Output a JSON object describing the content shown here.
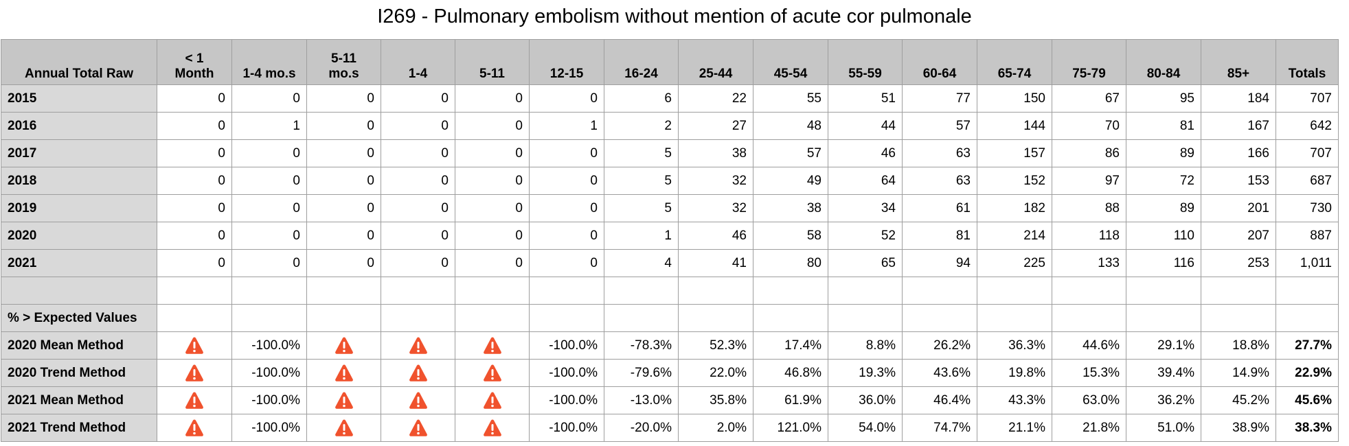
{
  "title": "I269 - Pulmonary embolism without mention of acute cor pulmonale",
  "colors": {
    "header_bg": "#c6c6c6",
    "label_bg": "#d9d9d9",
    "warning": "#f0522d"
  },
  "chart_data": {
    "type": "table",
    "title": "I269 - Pulmonary embolism without mention of acute cor pulmonale",
    "corner_label": "Annual Total Raw",
    "columns": [
      [
        "< 1",
        "Month"
      ],
      [
        "1-4 mo.s"
      ],
      [
        "5-11",
        "mo.s"
      ],
      [
        "1-4"
      ],
      [
        "5-11"
      ],
      [
        "12-15"
      ],
      [
        "16-24"
      ],
      [
        "25-44"
      ],
      [
        "45-54"
      ],
      [
        "55-59"
      ],
      [
        "60-64"
      ],
      [
        "65-74"
      ],
      [
        "75-79"
      ],
      [
        "80-84"
      ],
      [
        "85+"
      ],
      [
        "Totals"
      ]
    ],
    "raw_rows": [
      {
        "label": "2015",
        "values": [
          "0",
          "0",
          "0",
          "0",
          "0",
          "0",
          "6",
          "22",
          "55",
          "51",
          "77",
          "150",
          "67",
          "95",
          "184",
          "707"
        ]
      },
      {
        "label": "2016",
        "values": [
          "0",
          "1",
          "0",
          "0",
          "0",
          "1",
          "2",
          "27",
          "48",
          "44",
          "57",
          "144",
          "70",
          "81",
          "167",
          "642"
        ]
      },
      {
        "label": "2017",
        "values": [
          "0",
          "0",
          "0",
          "0",
          "0",
          "0",
          "5",
          "38",
          "57",
          "46",
          "63",
          "157",
          "86",
          "89",
          "166",
          "707"
        ]
      },
      {
        "label": "2018",
        "values": [
          "0",
          "0",
          "0",
          "0",
          "0",
          "0",
          "5",
          "32",
          "49",
          "64",
          "63",
          "152",
          "97",
          "72",
          "153",
          "687"
        ]
      },
      {
        "label": "2019",
        "values": [
          "0",
          "0",
          "0",
          "0",
          "0",
          "0",
          "5",
          "32",
          "38",
          "34",
          "61",
          "182",
          "88",
          "89",
          "201",
          "730"
        ]
      },
      {
        "label": "2020",
        "values": [
          "0",
          "0",
          "0",
          "0",
          "0",
          "0",
          "1",
          "46",
          "58",
          "52",
          "81",
          "214",
          "118",
          "110",
          "207",
          "887"
        ]
      },
      {
        "label": "2021",
        "values": [
          "0",
          "0",
          "0",
          "0",
          "0",
          "0",
          "4",
          "41",
          "80",
          "65",
          "94",
          "225",
          "133",
          "116",
          "253",
          "1,011"
        ]
      }
    ],
    "section_label": "% > Expected Values",
    "pct_rows": [
      {
        "label": "2020 Mean Method",
        "values": [
          "!",
          "-100.0%",
          "!",
          "!",
          "!",
          "-100.0%",
          "-78.3%",
          "52.3%",
          "17.4%",
          "8.8%",
          "26.2%",
          "36.3%",
          "44.6%",
          "29.1%",
          "18.8%",
          "27.7%"
        ]
      },
      {
        "label": "2020 Trend Method",
        "values": [
          "!",
          "-100.0%",
          "!",
          "!",
          "!",
          "-100.0%",
          "-79.6%",
          "22.0%",
          "46.8%",
          "19.3%",
          "43.6%",
          "19.8%",
          "15.3%",
          "39.4%",
          "14.9%",
          "22.9%"
        ]
      },
      {
        "label": "2021 Mean Method",
        "values": [
          "!",
          "-100.0%",
          "!",
          "!",
          "!",
          "-100.0%",
          "-13.0%",
          "35.8%",
          "61.9%",
          "36.0%",
          "46.4%",
          "43.3%",
          "63.0%",
          "36.2%",
          "45.2%",
          "45.6%"
        ]
      },
      {
        "label": "2021 Trend Method",
        "values": [
          "!",
          "-100.0%",
          "!",
          "!",
          "!",
          "-100.0%",
          "-20.0%",
          "2.0%",
          "121.0%",
          "54.0%",
          "74.7%",
          "21.1%",
          "21.8%",
          "51.0%",
          "38.9%",
          "38.3%"
        ]
      }
    ],
    "warning_icon": "warning-triangle-icon"
  }
}
